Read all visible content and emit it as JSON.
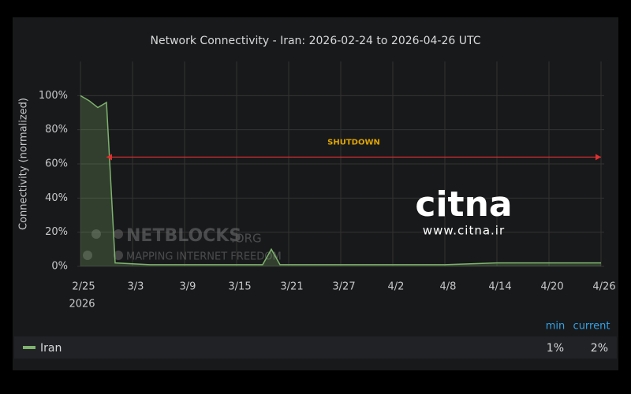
{
  "chart_data": {
    "type": "area",
    "title": "Network Connectivity - Iran: 2026-02-24 to 2026-04-26 UTC",
    "y_label": "Connectivity (normalized)",
    "x": [
      "2026-02-25",
      "2026-02-26",
      "2026-02-27",
      "2026-02-28",
      "2026-03-01",
      "2026-03-05",
      "2026-03-10",
      "2026-03-15",
      "2026-03-18",
      "2026-03-19",
      "2026-03-20",
      "2026-03-27",
      "2026-04-02",
      "2026-04-08",
      "2026-04-14",
      "2026-04-20",
      "2026-04-26"
    ],
    "series": [
      {
        "name": "Iran",
        "color": "#7eb26d",
        "values": [
          100,
          97,
          93,
          96,
          2,
          1,
          1,
          1,
          1,
          10,
          1,
          1,
          1,
          1,
          2,
          2,
          2
        ]
      }
    ],
    "xlim": [
      "2026-02-25",
      "2026-04-26"
    ],
    "xticks": [
      {
        "value": "2026-02-25",
        "label": "2/25"
      },
      {
        "value": "2026-03-03",
        "label": "3/3"
      },
      {
        "value": "2026-03-09",
        "label": "3/9"
      },
      {
        "value": "2026-03-15",
        "label": "3/15"
      },
      {
        "value": "2026-03-21",
        "label": "3/21"
      },
      {
        "value": "2026-03-27",
        "label": "3/27"
      },
      {
        "value": "2026-04-02",
        "label": "4/2"
      },
      {
        "value": "2026-04-08",
        "label": "4/8"
      },
      {
        "value": "2026-04-14",
        "label": "4/14"
      },
      {
        "value": "2026-04-20",
        "label": "4/20"
      },
      {
        "value": "2026-04-26",
        "label": "4/26"
      }
    ],
    "x_year_label": "2026",
    "ylim": [
      0,
      120
    ],
    "yticks": [
      {
        "value": 0,
        "label": "0%"
      },
      {
        "value": 20,
        "label": "20%"
      },
      {
        "value": 40,
        "label": "40%"
      },
      {
        "value": 60,
        "label": "60%"
      },
      {
        "value": 80,
        "label": "80%"
      },
      {
        "value": 100,
        "label": "100%"
      }
    ],
    "grid": true,
    "annotation": {
      "text": "SHUTDOWN",
      "x_start": "2026-02-28",
      "x_end": "2026-04-26",
      "y": 64,
      "color": "#e02f2f",
      "text_color": "#e0a500"
    },
    "legend_columns": [
      "min",
      "current"
    ],
    "legend_value_labels": [
      "1%",
      "2%"
    ],
    "watermarks": {
      "netblocks": "NETBLOCKS",
      "netblocks_suffix": ".ORG",
      "netblocks_tagline": "MAPPING INTERNET FREEDOM",
      "citna": "citna",
      "citna_url": "www.citna.ir"
    }
  }
}
